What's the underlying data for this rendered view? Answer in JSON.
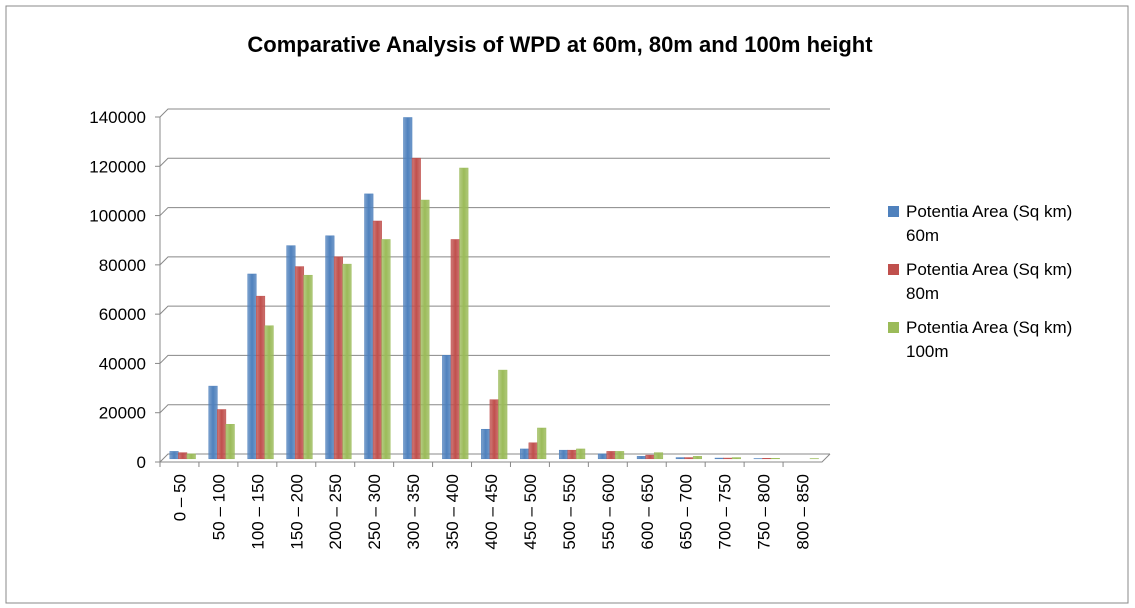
{
  "chart_data": {
    "type": "bar",
    "title": "Comparative Analysis of WPD at 60m, 80m and 100m height",
    "categories": [
      "0 – 50",
      "50 – 100",
      "100 – 150",
      "150 – 200",
      "200 – 250",
      "250 – 300",
      "300 – 350",
      "350 – 400",
      "400 – 450",
      "450 – 500",
      "500 – 550",
      "550 – 600",
      "600 – 650",
      "650 – 700",
      "700 – 750",
      "750 – 800",
      "800 – 850"
    ],
    "series": [
      {
        "name": "Potentia Area (Sq km) 60m",
        "color": "#4f81bd",
        "values": [
          3000,
          29500,
          75000,
          86500,
          90500,
          107500,
          138500,
          42000,
          12000,
          4000,
          3500,
          2000,
          1000,
          500,
          300,
          100,
          0
        ]
      },
      {
        "name": "Potentia Area (Sq km) 80m",
        "color": "#c0504d",
        "values": [
          2500,
          20000,
          66000,
          78000,
          82000,
          96500,
          122000,
          89000,
          24000,
          6500,
          3500,
          3000,
          1500,
          500,
          300,
          200,
          0
        ]
      },
      {
        "name": "Potentia Area (Sq km) 100m",
        "color": "#9bbb59",
        "values": [
          2000,
          14000,
          54000,
          74500,
          79000,
          89000,
          105000,
          118000,
          36000,
          12500,
          4000,
          3000,
          2500,
          1000,
          500,
          200,
          100
        ]
      }
    ],
    "ylim": [
      0,
      140000
    ],
    "yticks": [
      0,
      20000,
      40000,
      60000,
      80000,
      100000,
      120000,
      140000
    ],
    "grid": true,
    "legend": "right"
  }
}
